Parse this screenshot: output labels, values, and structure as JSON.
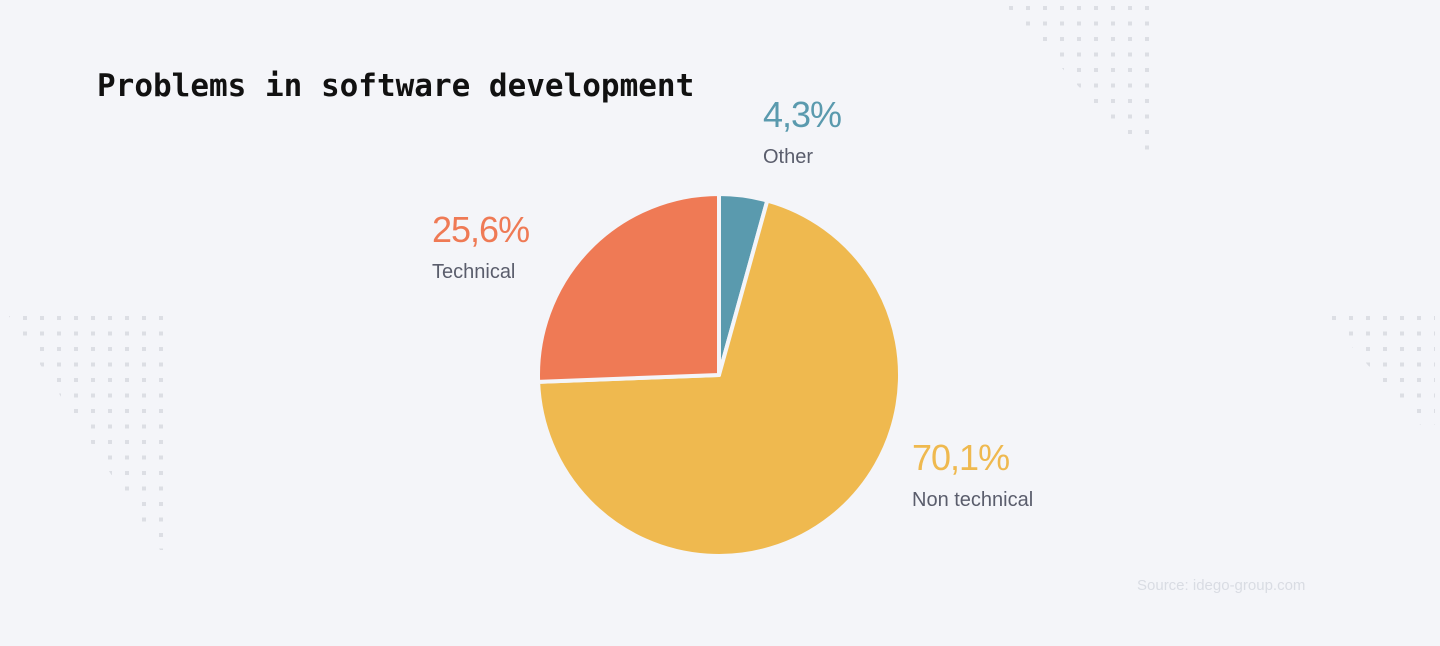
{
  "chart_data": {
    "type": "pie",
    "title": "Problems in software development",
    "categories": [
      "Other",
      "Non technical",
      "Technical"
    ],
    "values": [
      4.3,
      70.1,
      25.6
    ],
    "value_labels": [
      "4,3%",
      "70,1%",
      "25,6%"
    ],
    "colors": [
      "#5a9aae",
      "#efb94f",
      "#ef7a55"
    ],
    "source": "Source: idego-group.com"
  }
}
